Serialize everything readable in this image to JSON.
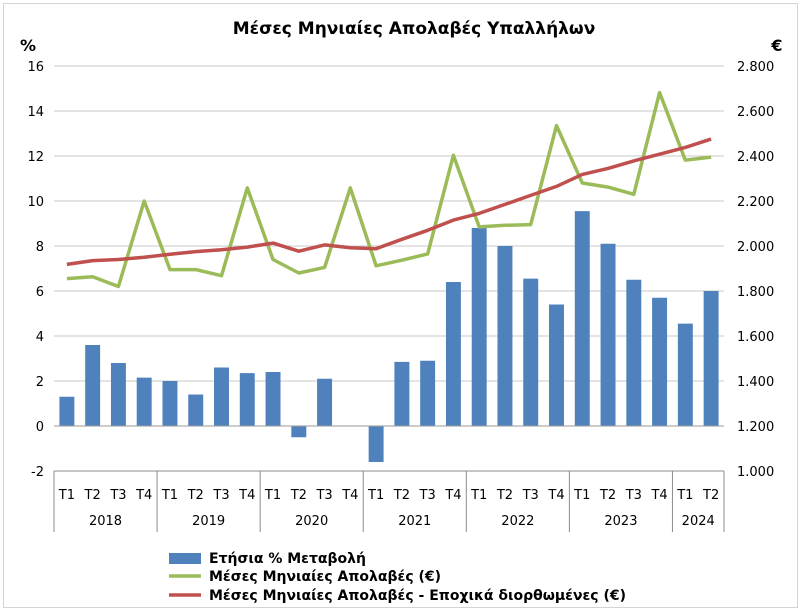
{
  "chart_data": {
    "type": "bar+line",
    "title": "Μέσες Μηνιαίες Απολαβές Υπαλλήλων",
    "left_axis_unit": "%",
    "right_axis_unit": "€",
    "left_ylim": [
      -2,
      16
    ],
    "left_ticks": [
      "-2",
      "0",
      "2",
      "4",
      "6",
      "8",
      "10",
      "12",
      "14",
      "16"
    ],
    "right_ylim": [
      1000,
      2800
    ],
    "right_ticks": [
      "1.000",
      "1.200",
      "1.400",
      "1.600",
      "1.800",
      "2.000",
      "2.200",
      "2.400",
      "2.600",
      "2.800"
    ],
    "quarters": [
      "Τ1",
      "Τ2",
      "Τ3",
      "Τ4",
      "Τ1",
      "Τ2",
      "Τ3",
      "Τ4",
      "Τ1",
      "Τ2",
      "Τ3",
      "Τ4",
      "Τ1",
      "Τ2",
      "Τ3",
      "Τ4",
      "Τ1",
      "Τ2",
      "Τ3",
      "Τ4",
      "Τ1",
      "Τ2",
      "Τ3",
      "Τ4",
      "Τ1",
      "Τ2"
    ],
    "years": [
      {
        "label": "2018",
        "count": 4
      },
      {
        "label": "2019",
        "count": 4
      },
      {
        "label": "2020",
        "count": 4
      },
      {
        "label": "2021",
        "count": 4
      },
      {
        "label": "2022",
        "count": 4
      },
      {
        "label": "2023",
        "count": 4
      },
      {
        "label": "2024",
        "count": 2
      }
    ],
    "grid": true,
    "legend_position": "bottom",
    "series": [
      {
        "name": "Ετήσια % Μεταβολή",
        "type": "bar",
        "axis": "left",
        "color": "#4f81bd",
        "values": [
          1.3,
          3.6,
          2.8,
          2.15,
          2.0,
          1.4,
          2.6,
          2.35,
          2.4,
          -0.5,
          2.1,
          0.0,
          -1.6,
          2.85,
          2.9,
          6.4,
          8.8,
          8.0,
          6.55,
          5.4,
          9.55,
          8.1,
          6.5,
          5.7,
          4.55,
          6.0
        ]
      },
      {
        "name": "Μέσες Μηνιαίες Απολαβές (€)",
        "type": "line",
        "axis": "right",
        "color": "#9bbb59",
        "values": [
          1855,
          1863,
          1820,
          2200,
          1895,
          1895,
          1868,
          2258,
          1940,
          1880,
          1905,
          2258,
          1912,
          1937,
          1965,
          2403,
          2085,
          2092,
          2095,
          2535,
          2280,
          2262,
          2230,
          2682,
          2382,
          2395
        ]
      },
      {
        "name": "Μέσες Μηνιαίες Απολαβές - Εποχικά διορθωμένες (€)",
        "type": "line",
        "axis": "right",
        "color": "#c0504d",
        "values": [
          1918,
          1935,
          1940,
          1950,
          1963,
          1975,
          1983,
          1995,
          2013,
          1977,
          2005,
          1992,
          1988,
          2030,
          2070,
          2115,
          2145,
          2185,
          2225,
          2265,
          2318,
          2345,
          2378,
          2408,
          2438,
          2475
        ]
      }
    ]
  }
}
